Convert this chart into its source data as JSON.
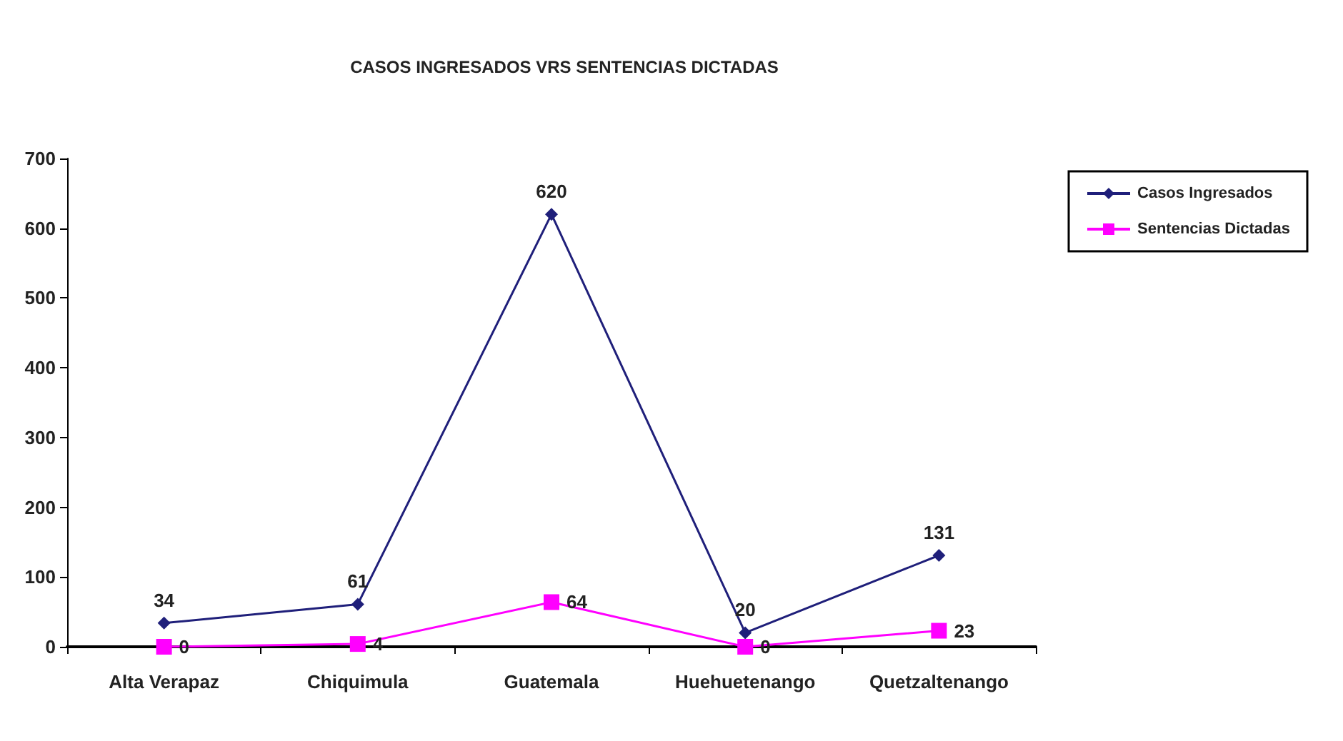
{
  "chart_data": {
    "type": "line",
    "title": "CASOS INGRESADOS VRS SENTENCIAS DICTADAS",
    "categories": [
      "Alta Verapaz",
      "Chiquimula",
      "Guatemala",
      "Huehuetenango",
      "Quetzaltenango"
    ],
    "series": [
      {
        "name": "Casos Ingresados",
        "color": "#1f1f7a",
        "marker": "diamond",
        "values": [
          34,
          61,
          620,
          20,
          131
        ]
      },
      {
        "name": "Sentencias Dictadas",
        "color": "#ff00ff",
        "marker": "square",
        "values": [
          0,
          4,
          64,
          0,
          23
        ]
      }
    ],
    "ylim": [
      0,
      700
    ],
    "yticks": [
      0,
      100,
      200,
      300,
      400,
      500,
      600,
      700
    ],
    "grid": false,
    "legend": "right",
    "data_labels": true
  }
}
